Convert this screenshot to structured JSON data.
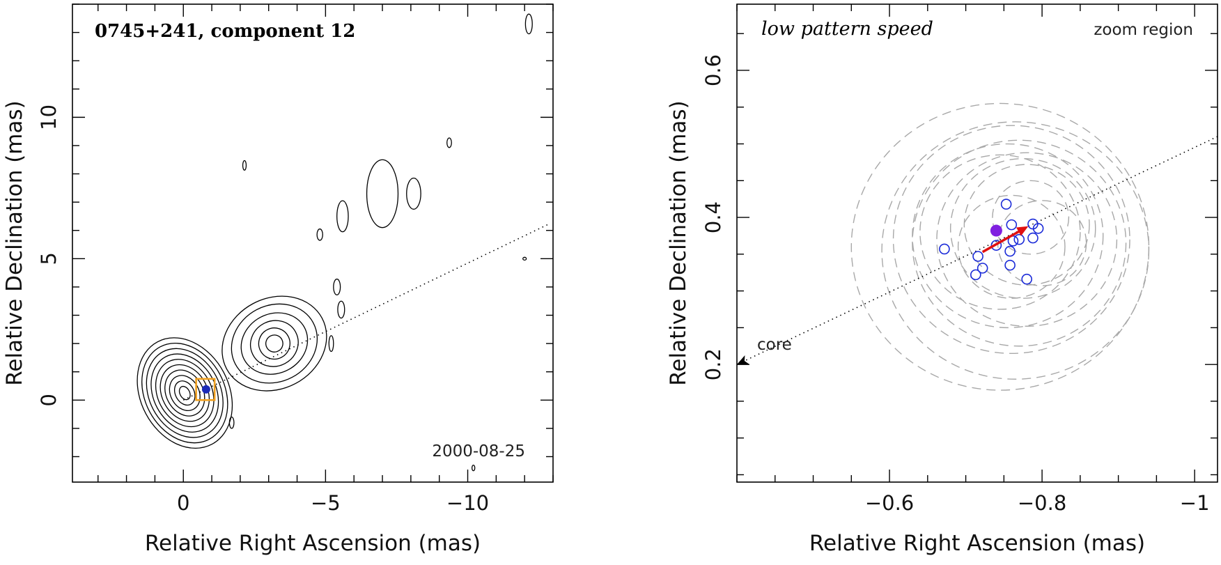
{
  "chart_data": [
    {
      "type": "scatter",
      "panel": "left",
      "title": "0745+241, component 12",
      "date_label": "2000-08-25",
      "xlabel": "Relative Right Ascension (mas)",
      "ylabel": "Relative Declination (mas)",
      "xlim": [
        3.9,
        -13.0
      ],
      "ylim": [
        -2.9,
        14.0
      ],
      "x_ticks": [
        0,
        -5,
        -10
      ],
      "x_tick_labels": [
        "0",
        "−5",
        "−10"
      ],
      "y_ticks": [
        0,
        5,
        10
      ],
      "y_tick_labels": [
        "0",
        "5",
        "10"
      ],
      "jet_axis_dotted": {
        "from": [
          0.0,
          0.0
        ],
        "to": [
          -12.8,
          6.2
        ]
      },
      "marked_component": {
        "x": -0.8,
        "y": 0.38,
        "color": "#1a2ab8"
      },
      "zoom_box": {
        "x": [
          -0.45,
          -1.1
        ],
        "y": [
          0.0,
          0.75
        ],
        "color": "#f0a020"
      },
      "contour_sets": [
        {
          "name": "core",
          "cx": -0.05,
          "cy": 0.25,
          "rx": [
            1.55,
            1.4,
            1.25,
            1.1,
            0.95,
            0.8,
            0.65,
            0.5,
            0.33,
            0.17
          ],
          "ry": [
            2.05,
            1.85,
            1.65,
            1.45,
            1.25,
            1.05,
            0.85,
            0.65,
            0.45,
            0.25
          ]
        },
        {
          "name": "inner-jet",
          "cx": -3.2,
          "cy": 2.0,
          "rx": [
            1.9,
            1.55,
            1.2,
            0.85,
            0.55,
            0.3
          ],
          "ry": [
            1.6,
            1.35,
            1.05,
            0.8,
            0.55,
            0.3
          ]
        }
      ],
      "small_contours": [
        {
          "x": -7.0,
          "y": 7.3,
          "rx": 0.55,
          "ry": 1.2
        },
        {
          "x": -8.1,
          "y": 7.3,
          "rx": 0.25,
          "ry": 0.55
        },
        {
          "x": -5.6,
          "y": 6.5,
          "rx": 0.2,
          "ry": 0.55
        },
        {
          "x": -4.8,
          "y": 5.85,
          "rx": 0.1,
          "ry": 0.2
        },
        {
          "x": -5.4,
          "y": 4.0,
          "rx": 0.12,
          "ry": 0.28
        },
        {
          "x": -5.55,
          "y": 3.2,
          "rx": 0.12,
          "ry": 0.3
        },
        {
          "x": -5.2,
          "y": 2.0,
          "rx": 0.08,
          "ry": 0.28
        },
        {
          "x": -1.7,
          "y": -0.8,
          "rx": 0.08,
          "ry": 0.2
        },
        {
          "x": -9.35,
          "y": 9.1,
          "rx": 0.08,
          "ry": 0.17
        },
        {
          "x": -12.15,
          "y": 13.3,
          "rx": 0.12,
          "ry": 0.35
        },
        {
          "x": -2.15,
          "y": 8.3,
          "rx": 0.06,
          "ry": 0.17
        },
        {
          "x": -10.2,
          "y": -2.4,
          "rx": 0.05,
          "ry": 0.1
        },
        {
          "x": -12.0,
          "y": 5.0,
          "rx": 0.06,
          "ry": 0.05
        }
      ]
    },
    {
      "type": "scatter",
      "panel": "right",
      "title": "low pattern speed",
      "region_label": "zoom region",
      "core_label": "core",
      "xlabel": "Relative Right Ascension (mas)",
      "ylabel": "Relative Declination (mas)",
      "xlim": [
        -0.4,
        -1.03
      ],
      "ylim": [
        0.04,
        0.69
      ],
      "x_ticks": [
        -0.6,
        -0.8,
        -1.0
      ],
      "x_tick_labels": [
        "−0.6",
        "−0.8",
        "−1"
      ],
      "y_ticks": [
        0.2,
        0.4,
        0.6
      ],
      "y_tick_labels": [
        "0.2",
        "0.4",
        "0.6"
      ],
      "jet_axis_dotted": {
        "from": [
          -1.03,
          0.51
        ],
        "to": [
          -0.4,
          0.2
        ]
      },
      "core_direction": "lower-left",
      "series": [
        {
          "points": [
            {
              "x": -0.753,
              "y": 0.418
            },
            {
              "x": -0.672,
              "y": 0.357
            },
            {
              "x": -0.716,
              "y": 0.347
            },
            {
              "x": -0.74,
              "y": 0.362
            },
            {
              "x": -0.722,
              "y": 0.331
            },
            {
              "x": -0.713,
              "y": 0.322
            },
            {
              "x": -0.758,
              "y": 0.354
            },
            {
              "x": -0.758,
              "y": 0.335
            },
            {
              "x": -0.76,
              "y": 0.39
            },
            {
              "x": -0.762,
              "y": 0.368
            },
            {
              "x": -0.77,
              "y": 0.37
            },
            {
              "x": -0.788,
              "y": 0.391
            },
            {
              "x": -0.795,
              "y": 0.385
            },
            {
              "x": -0.788,
              "y": 0.372
            },
            {
              "x": -0.78,
              "y": 0.316
            }
          ],
          "color": "#1a2ad8"
        }
      ],
      "highlighted_point": {
        "x": -0.74,
        "y": 0.382,
        "color": "#8020e0"
      },
      "motion_vector": {
        "from": [
          -0.722,
          0.353
        ],
        "to": [
          -0.782,
          0.388
        ],
        "color": "#e01010"
      },
      "uncertainty_circles": {
        "color": "#a8a8a8",
        "items": [
          {
            "cx": -0.745,
            "cy": 0.36,
            "r": 0.195
          },
          {
            "cx": -0.765,
            "cy": 0.355,
            "r": 0.175
          },
          {
            "cx": -0.76,
            "cy": 0.37,
            "r": 0.155
          },
          {
            "cx": -0.77,
            "cy": 0.365,
            "r": 0.14
          },
          {
            "cx": -0.755,
            "cy": 0.375,
            "r": 0.125
          },
          {
            "cx": -0.78,
            "cy": 0.37,
            "r": 0.118
          },
          {
            "cx": -0.745,
            "cy": 0.38,
            "r": 0.105
          },
          {
            "cx": -0.775,
            "cy": 0.385,
            "r": 0.095
          },
          {
            "cx": -0.78,
            "cy": 0.39,
            "r": 0.082
          },
          {
            "cx": -0.76,
            "cy": 0.36,
            "r": 0.07
          },
          {
            "cx": -0.8,
            "cy": 0.365,
            "r": 0.058
          },
          {
            "cx": -0.785,
            "cy": 0.4,
            "r": 0.05
          }
        ]
      }
    }
  ]
}
